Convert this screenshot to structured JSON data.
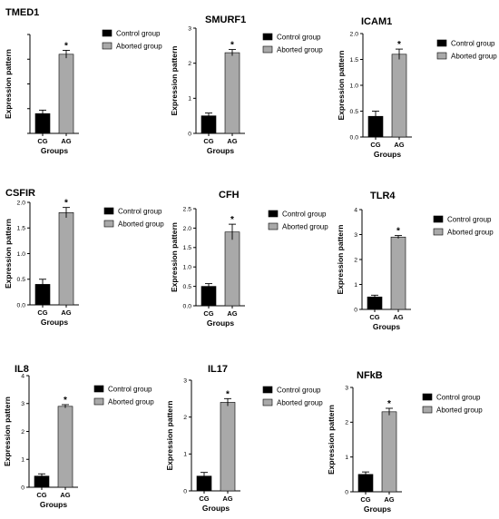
{
  "chart_data": [
    {
      "type": "bar",
      "title": "TMED1",
      "ylabel": "Expression pattern",
      "xlabel": "Groups",
      "categories": [
        "CG",
        "AG"
      ],
      "values": [
        0.4,
        1.6
      ],
      "errors": [
        0.07,
        0.08
      ],
      "ylim": [
        0,
        2
      ],
      "yticks": [
        "",
        "",
        "",
        "",
        ""
      ],
      "annotations": [
        "",
        "*"
      ],
      "legend": [
        "Control group",
        "Aborted group"
      ],
      "colors": [
        "#000000",
        "#a9a9a9"
      ]
    },
    {
      "type": "bar",
      "title": "SMURF1",
      "ylabel": "Expression pattern",
      "xlabel": "Groups",
      "categories": [
        "CG",
        "AG"
      ],
      "values": [
        0.5,
        2.3
      ],
      "errors": [
        0.08,
        0.09
      ],
      "ylim": [
        0,
        3
      ],
      "yticks": [
        "0",
        "1",
        "2",
        "3"
      ],
      "annotations": [
        "",
        "*"
      ],
      "legend": [
        "Control group",
        "Aborted group"
      ],
      "colors": [
        "#000000",
        "#a9a9a9"
      ]
    },
    {
      "type": "bar",
      "title": "ICAM1",
      "ylabel": "Expression pattern",
      "xlabel": "Groups",
      "categories": [
        "CG",
        "AG"
      ],
      "values": [
        0.4,
        1.6
      ],
      "errors": [
        0.1,
        0.1
      ],
      "ylim": [
        0,
        2
      ],
      "yticks": [
        "0.0",
        "0.5",
        "1.0",
        "1.5",
        "2.0"
      ],
      "annotations": [
        "",
        "*"
      ],
      "legend": [
        "Control group",
        "Aborted group"
      ],
      "colors": [
        "#000000",
        "#a9a9a9"
      ]
    },
    {
      "type": "bar",
      "title": "CSFIR",
      "ylabel": "Expression pattern",
      "xlabel": "Groups",
      "categories": [
        "CG",
        "AG"
      ],
      "values": [
        0.4,
        1.8
      ],
      "errors": [
        0.1,
        0.1
      ],
      "ylim": [
        0,
        2
      ],
      "yticks": [
        "0.0",
        "0.5",
        "1.0",
        "1.5",
        "2.0"
      ],
      "annotations": [
        "",
        "*"
      ],
      "legend": [
        "Control group",
        "Aborted group"
      ],
      "colors": [
        "#000000",
        "#a9a9a9"
      ]
    },
    {
      "type": "bar",
      "title": "CFH",
      "ylabel": "Expression pattern",
      "xlabel": "Groups",
      "categories": [
        "CG",
        "AG"
      ],
      "values": [
        0.5,
        1.9
      ],
      "errors": [
        0.07,
        0.2
      ],
      "ylim": [
        0,
        2.5
      ],
      "yticks": [
        "0.0",
        "0.5",
        "1.0",
        "1.5",
        "2.0",
        "2.5"
      ],
      "annotations": [
        "",
        "*"
      ],
      "legend": [
        "Control group",
        "Aborted group"
      ],
      "colors": [
        "#000000",
        "#a9a9a9"
      ]
    },
    {
      "type": "bar",
      "title": "TLR4",
      "ylabel": "Expression pattern",
      "xlabel": "Groups",
      "categories": [
        "CG",
        "AG"
      ],
      "values": [
        0.5,
        2.9
      ],
      "errors": [
        0.07,
        0.06
      ],
      "ylim": [
        0,
        4
      ],
      "yticks": [
        "0",
        "1",
        "2",
        "3",
        "4"
      ],
      "annotations": [
        "",
        "*"
      ],
      "legend": [
        "Control group",
        "Aborted group"
      ],
      "colors": [
        "#000000",
        "#a9a9a9"
      ]
    },
    {
      "type": "bar",
      "title": "IL8",
      "ylabel": "Expression pattern",
      "xlabel": "Groups",
      "categories": [
        "CG",
        "AG"
      ],
      "values": [
        0.4,
        2.9
      ],
      "errors": [
        0.08,
        0.06
      ],
      "ylim": [
        0,
        4
      ],
      "yticks": [
        "0",
        "1",
        "2",
        "3",
        "4"
      ],
      "annotations": [
        "",
        "*"
      ],
      "legend": [
        "Control group",
        "Aborted group"
      ],
      "colors": [
        "#000000",
        "#a9a9a9"
      ]
    },
    {
      "type": "bar",
      "title": "IL17",
      "ylabel": "Expression pattern",
      "xlabel": "Groups",
      "categories": [
        "CG",
        "AG"
      ],
      "values": [
        0.4,
        2.4
      ],
      "errors": [
        0.1,
        0.1
      ],
      "ylim": [
        0,
        3
      ],
      "yticks": [
        "0",
        "1",
        "2",
        "3"
      ],
      "annotations": [
        "",
        "*"
      ],
      "legend": [
        "Control group",
        "Aborted group"
      ],
      "colors": [
        "#000000",
        "#a9a9a9"
      ]
    },
    {
      "type": "bar",
      "title": "NFkB",
      "ylabel": "Expression pattern",
      "xlabel": "Groups",
      "categories": [
        "CG",
        "AG"
      ],
      "values": [
        0.5,
        2.3
      ],
      "errors": [
        0.07,
        0.1
      ],
      "ylim": [
        0,
        3
      ],
      "yticks": [
        "0",
        "1",
        "2",
        "3"
      ],
      "annotations": [
        "",
        "*"
      ],
      "legend": [
        "Control group",
        "Aborted group"
      ],
      "colors": [
        "#000000",
        "#a9a9a9"
      ]
    }
  ]
}
